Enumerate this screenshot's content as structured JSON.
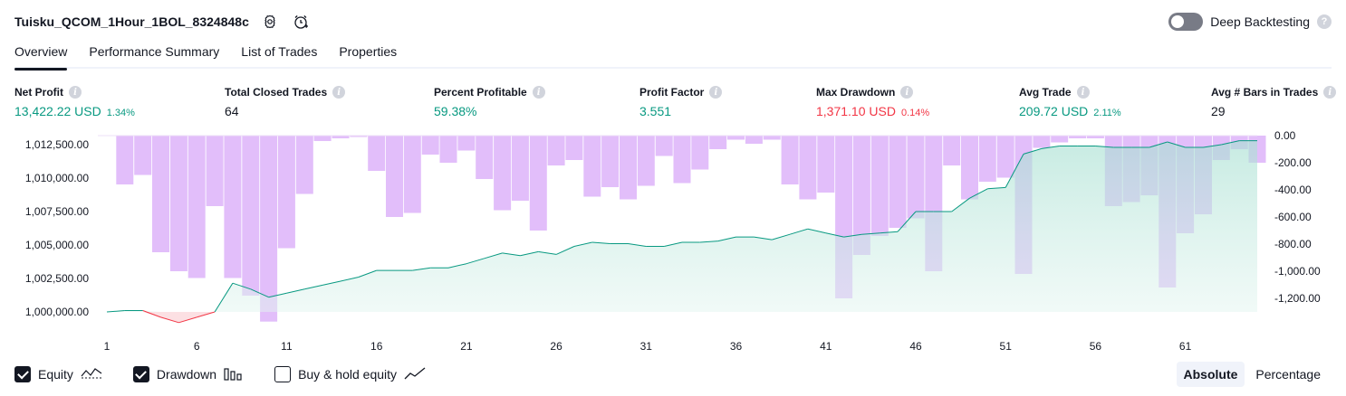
{
  "header": {
    "title": "Tuisku_QCOM_1Hour_1BOL_8324848c",
    "deep_backtesting_label": "Deep Backtesting",
    "deep_backtesting_enabled": false
  },
  "tabs": [
    {
      "label": "Overview",
      "active": true
    },
    {
      "label": "Performance Summary",
      "active": false
    },
    {
      "label": "List of Trades",
      "active": false
    },
    {
      "label": "Properties",
      "active": false
    }
  ],
  "metrics": {
    "net_profit": {
      "label": "Net Profit",
      "value": "13,422.22 USD",
      "pct": "1.34%"
    },
    "total_closed_trades": {
      "label": "Total Closed Trades",
      "value": "64"
    },
    "percent_profitable": {
      "label": "Percent Profitable",
      "value": "59.38%"
    },
    "profit_factor": {
      "label": "Profit Factor",
      "value": "3.551"
    },
    "max_drawdown": {
      "label": "Max Drawdown",
      "value": "1,371.10 USD",
      "pct": "0.14%"
    },
    "avg_trade": {
      "label": "Avg Trade",
      "value": "209.72 USD",
      "pct": "2.11%"
    },
    "avg_bars": {
      "label": "Avg # Bars in Trades",
      "value": "29"
    }
  },
  "colors": {
    "positive": "#089981",
    "negative": "#f23645",
    "drawdown_bar": "#ce93f7",
    "equity_line": "#089981",
    "equity_fill": "#d0ede5"
  },
  "legend": {
    "equity": {
      "label": "Equity",
      "checked": true,
      "icon": "equity-line-icon"
    },
    "drawdown": {
      "label": "Drawdown",
      "checked": true,
      "icon": "drawdown-bars-icon"
    },
    "buy_hold": {
      "label": "Buy & hold equity",
      "checked": false,
      "icon": "buy-hold-line-icon"
    }
  },
  "scale_toggle": {
    "absolute": "Absolute",
    "percentage": "Percentage",
    "active": "absolute"
  },
  "chart_data": {
    "type": "line",
    "x": [
      1,
      2,
      3,
      4,
      5,
      6,
      7,
      8,
      9,
      10,
      11,
      12,
      13,
      14,
      15,
      16,
      17,
      18,
      19,
      20,
      21,
      22,
      23,
      24,
      25,
      26,
      27,
      28,
      29,
      30,
      31,
      32,
      33,
      34,
      35,
      36,
      37,
      38,
      39,
      40,
      41,
      42,
      43,
      44,
      45,
      46,
      47,
      48,
      49,
      50,
      51,
      52,
      53,
      54,
      55,
      56,
      57,
      58,
      59,
      60,
      61,
      62,
      63,
      64,
      65
    ],
    "x_ticks": [
      "1",
      "6",
      "11",
      "16",
      "21",
      "26",
      "31",
      "36",
      "41",
      "46",
      "51",
      "56",
      "61"
    ],
    "left_axis": {
      "ticks": [
        "1,000,000.00",
        "1,002,500.00",
        "1,005,000.00",
        "1,007,500.00",
        "1,010,000.00",
        "1,012,500.00"
      ],
      "ylim": [
        999000,
        1013500
      ]
    },
    "right_axis": {
      "ticks": [
        "0.00",
        "-200.00",
        "-400.00",
        "-600.00",
        "-800.00",
        "-1,000.00",
        "-1,200.00"
      ],
      "ylim": [
        -1371.1,
        0
      ]
    },
    "series": [
      {
        "name": "Equity",
        "axis": "left",
        "values": [
          1000000,
          1000100,
          1000100,
          999600,
          999200,
          999600,
          1000000,
          1002150,
          1001700,
          1001100,
          1001400,
          1001700,
          1002000,
          1002300,
          1002600,
          1003100,
          1003100,
          1003100,
          1003300,
          1003300,
          1003600,
          1004000,
          1004400,
          1004200,
          1004500,
          1004300,
          1004900,
          1005200,
          1005100,
          1005100,
          1004900,
          1004900,
          1005200,
          1005200,
          1005300,
          1005600,
          1005600,
          1005400,
          1005800,
          1006200,
          1005900,
          1005600,
          1005800,
          1005900,
          1006000,
          1007500,
          1007500,
          1007500,
          1008500,
          1009200,
          1009300,
          1011800,
          1012200,
          1012400,
          1012400,
          1012400,
          1012300,
          1012300,
          1012300,
          1012700,
          1012300,
          1012300,
          1012500,
          1012800,
          1012800
        ],
        "type": "area"
      },
      {
        "name": "Drawdown",
        "axis": "right",
        "values": [
          0,
          -360,
          -290,
          -860,
          -1000,
          -1050,
          -520,
          -1050,
          -1180,
          -1371,
          -830,
          -430,
          -40,
          -20,
          -10,
          -260,
          -600,
          -570,
          -140,
          -200,
          -110,
          -320,
          -550,
          -480,
          -700,
          -220,
          -180,
          -450,
          -380,
          -470,
          -370,
          -150,
          -350,
          -250,
          -100,
          -30,
          -60,
          -30,
          -360,
          -470,
          -420,
          -1200,
          -880,
          -740,
          -680,
          -610,
          -1000,
          -220,
          -470,
          -340,
          -310,
          -1020,
          -90,
          -50,
          -20,
          -20,
          -520,
          -490,
          -440,
          -1120,
          -720,
          -580,
          -180,
          -100,
          -200
        ],
        "type": "bar"
      }
    ]
  }
}
